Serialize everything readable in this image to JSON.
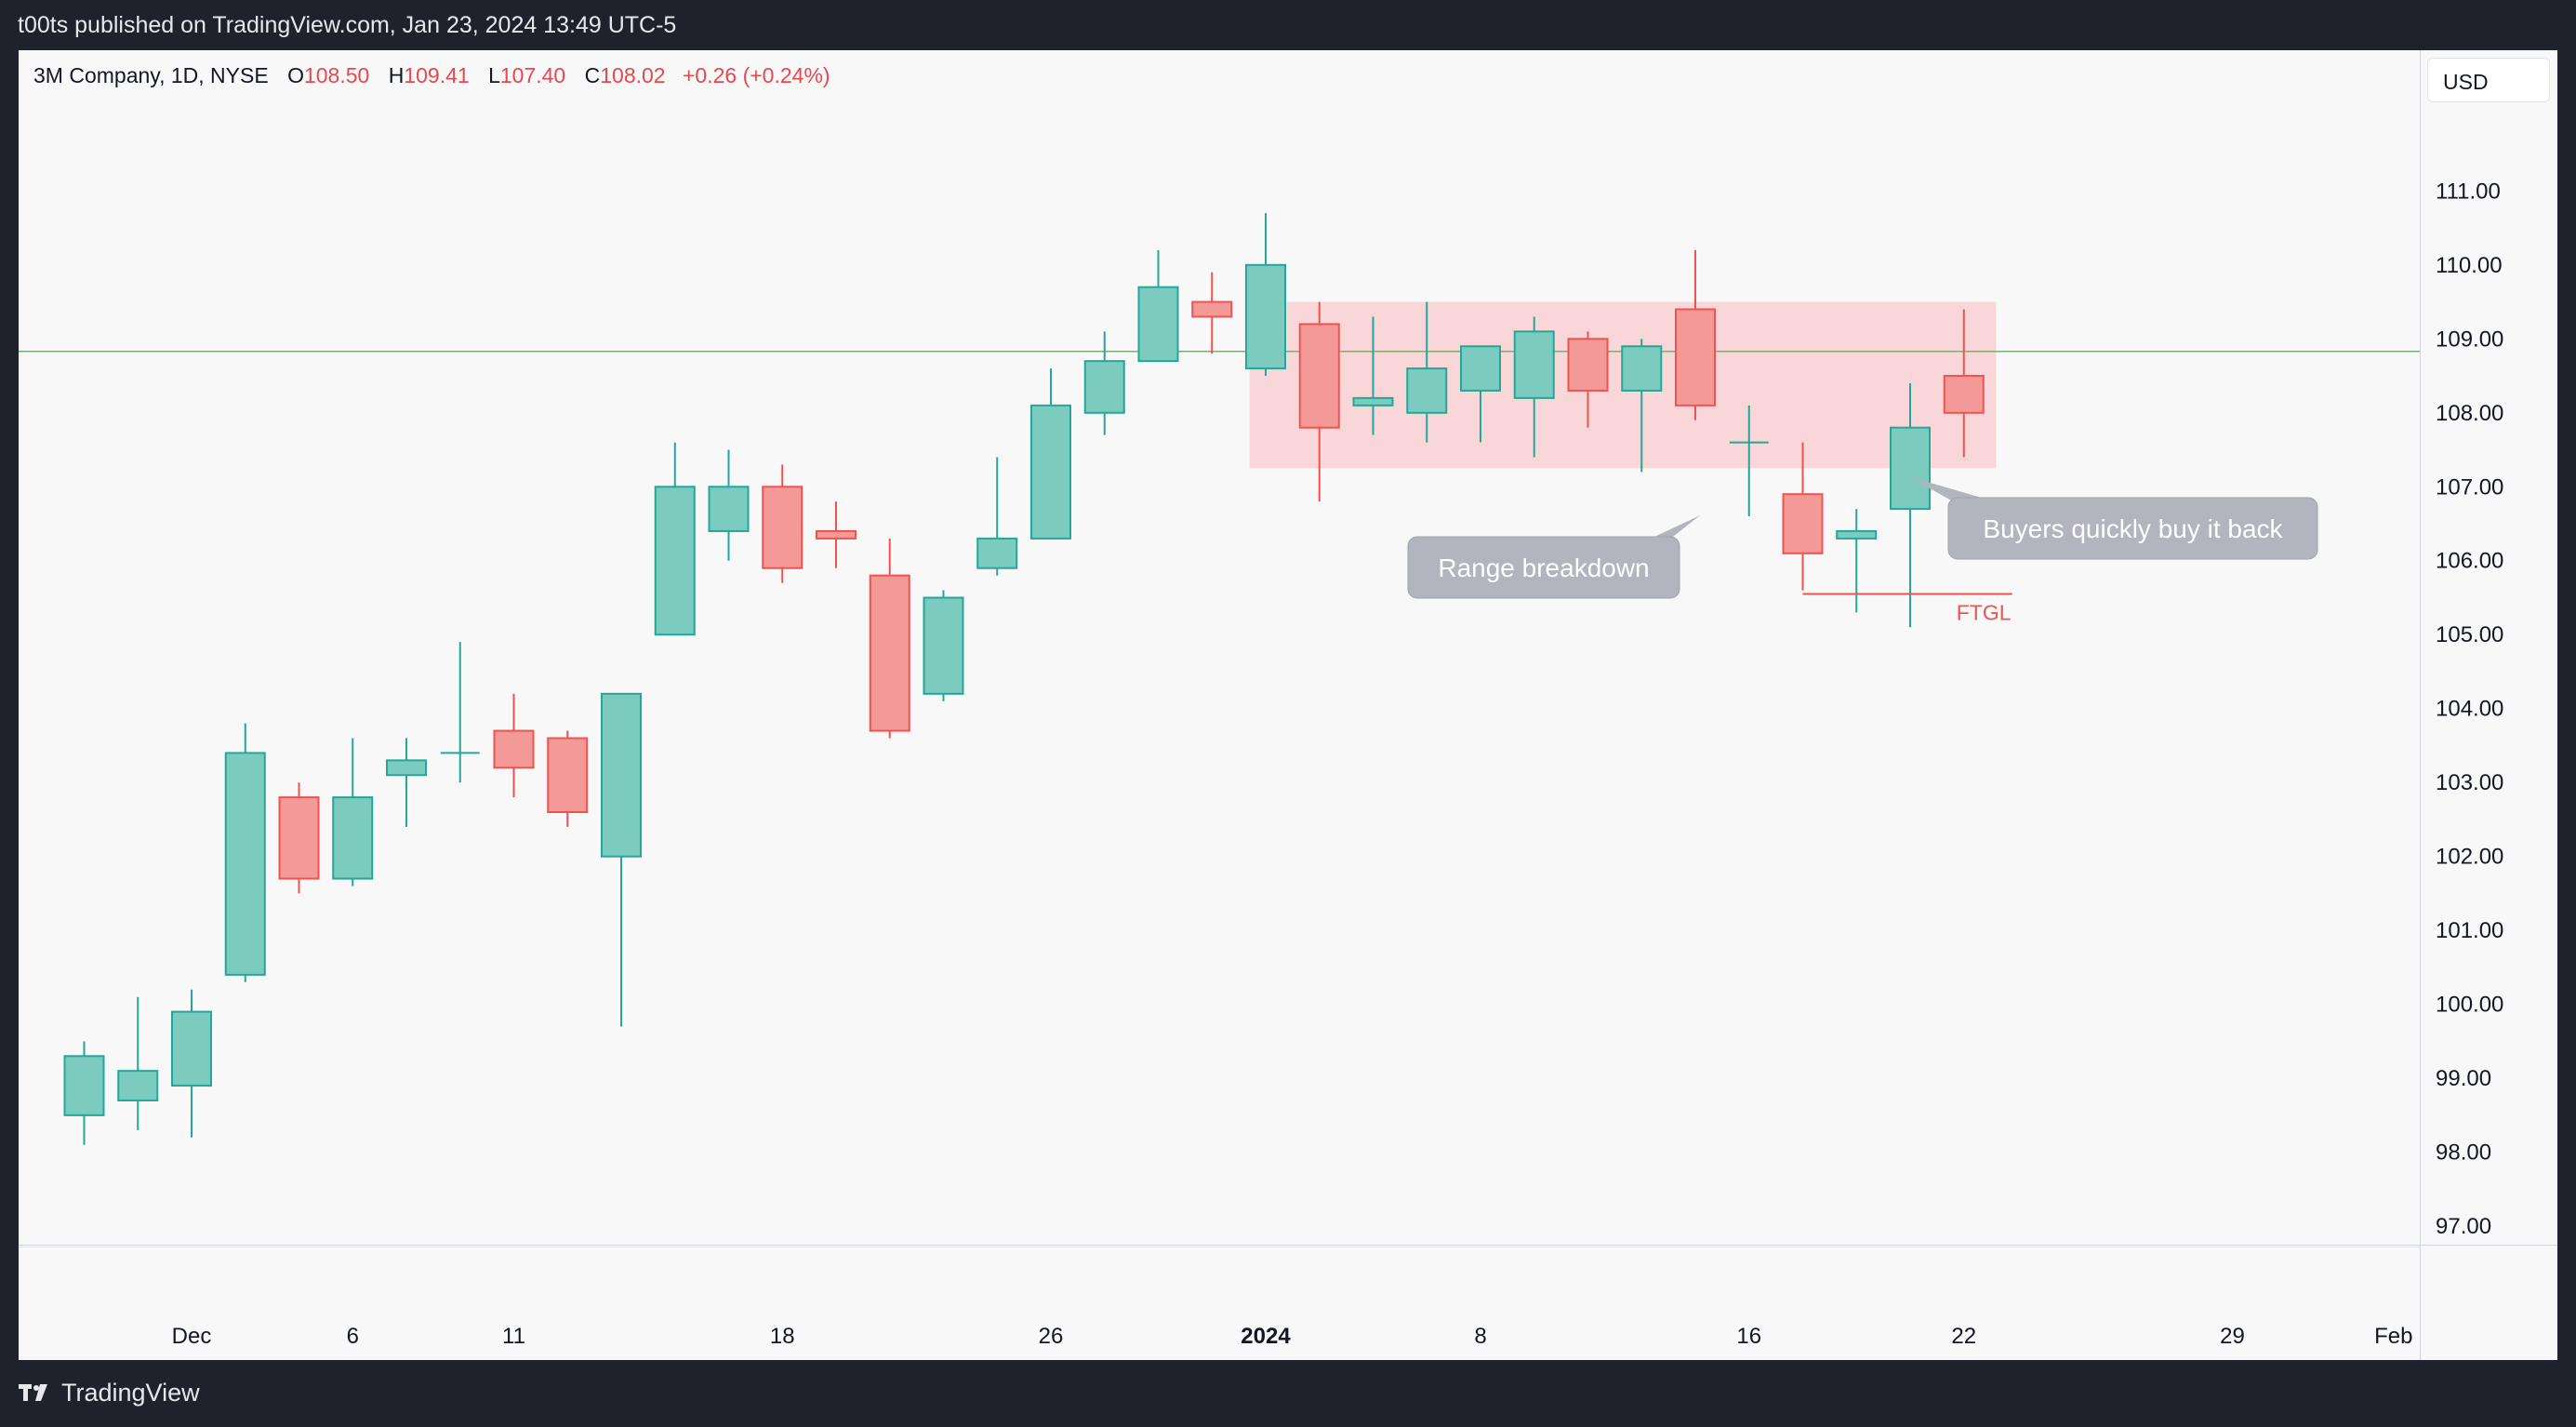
{
  "publish_line": "t00ts published on TradingView.com, Jan 23, 2024 13:49 UTC-5",
  "legend": {
    "symbol": "3M Company, 1D, NYSE",
    "open_label": "O",
    "open_value": "108.50",
    "high_label": "H",
    "high_value": "109.41",
    "low_label": "L",
    "low_value": "107.40",
    "close_label": "C",
    "close_value": "108.02",
    "change": "+0.26 (+0.24%)"
  },
  "currency": "USD",
  "footer_brand": "TradingView",
  "icons": {
    "logo": "tradingview-logo-icon"
  },
  "colors": {
    "up": "#26a69a",
    "down": "#ef5350",
    "up_fill": "#7ccbbf",
    "down_fill": "#f39a99",
    "range_box": "#f9d7d8",
    "label_bubble": "#b2b5be"
  },
  "chart_data": {
    "type": "candlestick",
    "ylim": [
      96.8,
      112.3
    ],
    "y_ticks": [
      "111.00",
      "110.00",
      "109.00",
      "108.00",
      "107.00",
      "106.00",
      "105.00",
      "104.00",
      "103.00",
      "102.00",
      "101.00",
      "100.00",
      "99.00",
      "98.00",
      "97.00"
    ],
    "y_tick_values": [
      111,
      110,
      109,
      108,
      107,
      106,
      105,
      104,
      103,
      102,
      101,
      100,
      99,
      98,
      97
    ],
    "x_ticks": [
      {
        "label": "Dec",
        "slot": 2
      },
      {
        "label": "6",
        "slot": 5
      },
      {
        "label": "11",
        "slot": 8
      },
      {
        "label": "18",
        "slot": 13
      },
      {
        "label": "26",
        "slot": 18
      },
      {
        "label": "2024",
        "slot": 22,
        "bold": true
      },
      {
        "label": "8",
        "slot": 26
      },
      {
        "label": "16",
        "slot": 31
      },
      {
        "label": "22",
        "slot": 35
      },
      {
        "label": "29",
        "slot": 40
      },
      {
        "label": "Feb",
        "slot": 43
      }
    ],
    "horizontal_line": 108.83,
    "candles": [
      {
        "o": 98.5,
        "h": 99.5,
        "l": 98.1,
        "c": 99.3
      },
      {
        "o": 98.7,
        "h": 100.1,
        "l": 98.3,
        "c": 99.1
      },
      {
        "o": 98.9,
        "h": 100.2,
        "l": 98.2,
        "c": 99.9
      },
      {
        "o": 100.4,
        "h": 103.8,
        "l": 100.3,
        "c": 103.4
      },
      {
        "o": 102.8,
        "h": 103.0,
        "l": 101.5,
        "c": 101.7
      },
      {
        "o": 101.7,
        "h": 103.6,
        "l": 101.6,
        "c": 102.8
      },
      {
        "o": 103.1,
        "h": 103.6,
        "l": 102.4,
        "c": 103.3
      },
      {
        "o": 103.4,
        "h": 104.9,
        "l": 103.0,
        "c": 103.4
      },
      {
        "o": 103.7,
        "h": 104.2,
        "l": 102.8,
        "c": 103.2
      },
      {
        "o": 103.6,
        "h": 103.7,
        "l": 102.4,
        "c": 102.6
      },
      {
        "o": 102.0,
        "h": 104.2,
        "l": 99.7,
        "c": 104.2
      },
      {
        "o": 105.0,
        "h": 107.6,
        "l": 105.0,
        "c": 107.0
      },
      {
        "o": 106.4,
        "h": 107.5,
        "l": 106.0,
        "c": 107.0
      },
      {
        "o": 107.0,
        "h": 107.3,
        "l": 105.7,
        "c": 105.9
      },
      {
        "o": 106.4,
        "h": 106.8,
        "l": 105.9,
        "c": 106.3
      },
      {
        "o": 105.8,
        "h": 106.3,
        "l": 103.6,
        "c": 103.7
      },
      {
        "o": 104.2,
        "h": 105.6,
        "l": 104.1,
        "c": 105.5
      },
      {
        "o": 105.9,
        "h": 107.4,
        "l": 105.8,
        "c": 106.3
      },
      {
        "o": 106.3,
        "h": 108.6,
        "l": 106.3,
        "c": 108.1
      },
      {
        "o": 108.0,
        "h": 109.1,
        "l": 107.7,
        "c": 108.7
      },
      {
        "o": 108.7,
        "h": 110.2,
        "l": 108.7,
        "c": 109.7
      },
      {
        "o": 109.5,
        "h": 109.9,
        "l": 108.8,
        "c": 109.3
      },
      {
        "o": 108.6,
        "h": 110.7,
        "l": 108.5,
        "c": 110.0
      },
      {
        "o": 109.2,
        "h": 109.5,
        "l": 106.8,
        "c": 107.8
      },
      {
        "o": 108.1,
        "h": 109.3,
        "l": 107.7,
        "c": 108.2
      },
      {
        "o": 108.0,
        "h": 109.5,
        "l": 107.6,
        "c": 108.6
      },
      {
        "o": 108.3,
        "h": 108.9,
        "l": 107.6,
        "c": 108.9
      },
      {
        "o": 108.2,
        "h": 109.3,
        "l": 107.4,
        "c": 109.1
      },
      {
        "o": 109.0,
        "h": 109.1,
        "l": 107.8,
        "c": 108.3
      },
      {
        "o": 108.3,
        "h": 109.0,
        "l": 107.2,
        "c": 108.9
      },
      {
        "o": 109.4,
        "h": 110.2,
        "l": 107.9,
        "c": 108.1
      },
      {
        "o": 107.6,
        "h": 108.1,
        "l": 106.6,
        "c": 107.6
      },
      {
        "o": 106.9,
        "h": 107.6,
        "l": 105.6,
        "c": 106.1
      },
      {
        "o": 106.3,
        "h": 106.7,
        "l": 105.3,
        "c": 106.4
      },
      {
        "o": 106.7,
        "h": 108.4,
        "l": 105.1,
        "c": 107.8
      },
      {
        "o": 108.5,
        "h": 109.4,
        "l": 107.4,
        "c": 108.0
      }
    ],
    "range_box": {
      "from_slot": 21.7,
      "to_slot": 35.6,
      "top": 109.5,
      "bottom": 107.25
    },
    "ftgl_line": {
      "price": 105.55,
      "from_slot": 32,
      "to_slot": 35.9,
      "label": "FTGL"
    },
    "annotations": [
      {
        "text": "Range breakdown"
      },
      {
        "text": "Buyers quickly buy it back"
      }
    ]
  }
}
